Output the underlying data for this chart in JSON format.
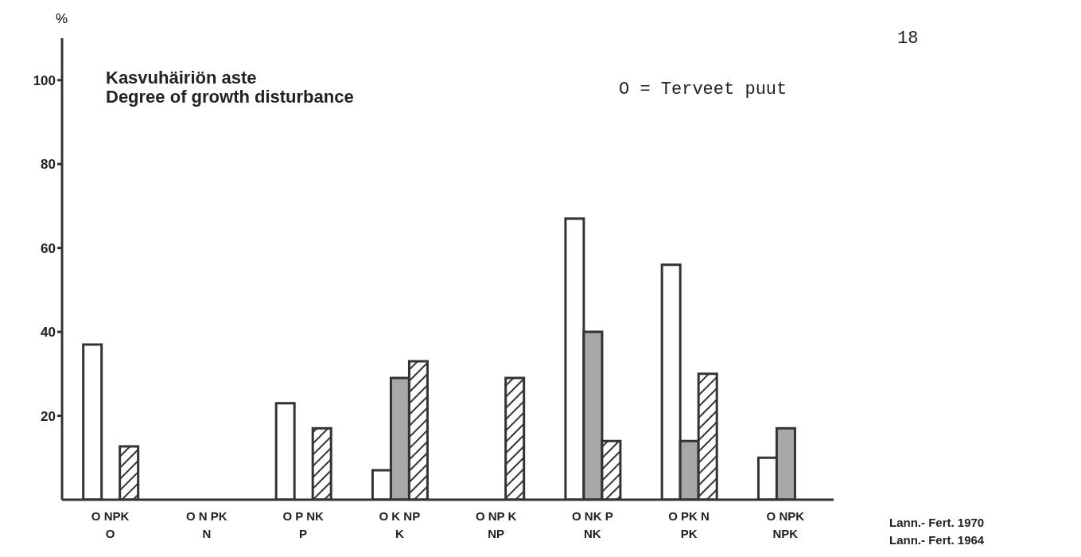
{
  "chart_data": {
    "type": "bar",
    "title": "Kasvuhäiriön aste",
    "subtitle": "Degree of growth disturbance",
    "ylabel": "%",
    "categories": [
      "O NPK\nO",
      "O N PK\nN",
      "O P NK\nP",
      "O K NP\nK",
      "O NP K\nNP",
      "O NK P\nNK",
      "O PK N\nPK",
      "O NPK\nNPK"
    ],
    "series": [
      {
        "color": "#ffffff",
        "values": [
          37,
          0,
          23,
          7,
          0,
          67,
          56,
          10
        ]
      },
      {
        "color": "#a8a8a8",
        "values": [
          null,
          0,
          0,
          29,
          0,
          40,
          14,
          17
        ]
      },
      {
        "color": "#333333",
        "values": [
          12.7,
          0,
          17,
          33,
          29,
          14,
          30,
          null
        ]
      }
    ],
    "ylim": [
      0,
      110
    ],
    "yticks": [
      20,
      40,
      60,
      80,
      100
    ],
    "annotations": [
      "O = Terveet puut",
      "18",
      "Lann.- Fert. 1970",
      "Lann.- Fert. 1964"
    ]
  }
}
